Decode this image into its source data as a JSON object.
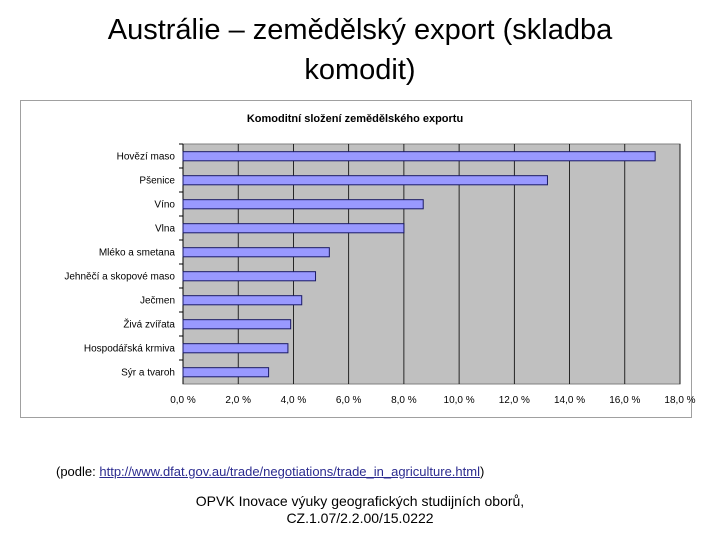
{
  "slide": {
    "title_line1": "Austrálie – zemědělský export (skladba",
    "title_line2": "komodit)"
  },
  "source": {
    "prefix": "(podle: ",
    "link": "http://www.dfat.gov.au/trade/negotiations/trade_in_agriculture.html",
    "suffix": ")"
  },
  "footer": {
    "line1": "OPVK Inovace výuky geografických studijních oborů,",
    "line2": "CZ.1.07/2.2.00/15.0222"
  },
  "chart_data": {
    "type": "bar",
    "orientation": "horizontal",
    "title": "Komoditní složení zemědělského exportu",
    "categories": [
      "Hovězí maso",
      "Pšenice",
      "Víno",
      "Vlna",
      "Mléko a smetana",
      "Jehněčí a skopové maso",
      "Ječmen",
      "Živá zvířata",
      "Hospodářská krmiva",
      "Sýr a tvaroh"
    ],
    "values": [
      17.1,
      13.2,
      8.7,
      8.0,
      5.3,
      4.8,
      4.3,
      3.9,
      3.8,
      3.1
    ],
    "xlim": [
      0,
      18
    ],
    "x_ticks": [
      0,
      2,
      4,
      6,
      8,
      10,
      12,
      14,
      16,
      18
    ],
    "tick_labels": [
      "0,0 %",
      "2,0 %",
      "4,0 %",
      "6,0 %",
      "8,0 %",
      "10,0 %",
      "12,0 %",
      "14,0 %",
      "16,0 %",
      "18,0 %"
    ],
    "grid": true,
    "legend": "none",
    "colors": {
      "bar_fill": "#9999ff",
      "bar_stroke": "#1a1a66",
      "plot_bg": "#c0c0c0",
      "grid": "#000000"
    }
  }
}
